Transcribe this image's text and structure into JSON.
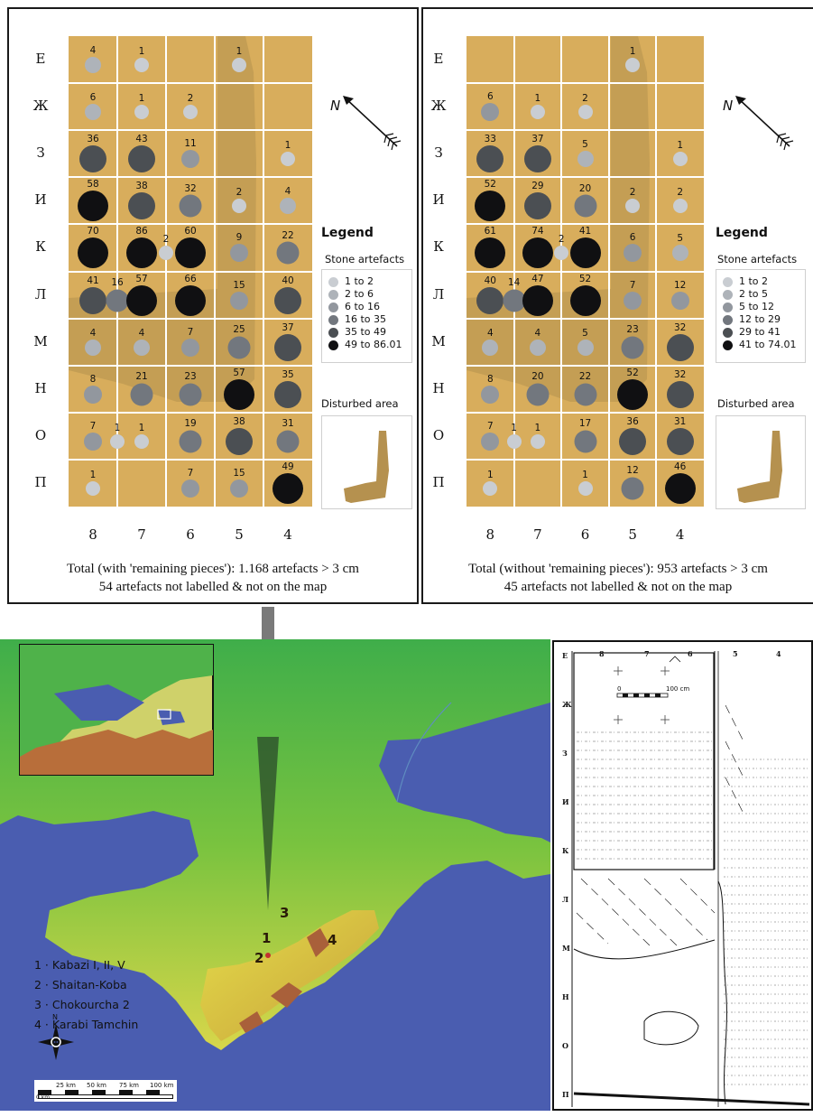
{
  "rows": [
    "Е",
    "Ж",
    "З",
    "И",
    "К",
    "Л",
    "М",
    "Н",
    "О",
    "П"
  ],
  "cols": [
    "8",
    "7",
    "6",
    "5",
    "4"
  ],
  "north_label": "N",
  "legend": {
    "title": "Legend",
    "subtitle": "Stone artefacts",
    "disturbed_label": "Disturbed area"
  },
  "colors": {
    "grid_fill": "#d8ad5c",
    "disturbed_fill": "#b5914f",
    "class_colors": [
      "#c9cdd2",
      "#aeb3b9",
      "#92979e",
      "#72777e",
      "#4b4f53",
      "#101012"
    ]
  },
  "left_map": {
    "legend_items": [
      "1 to 2",
      "2 to 6",
      "6 to 16",
      "16 to 35",
      "35 to 49",
      "49 to 86.01"
    ],
    "total_line1": "Total (with 'remaining pieces'): 1.168 artefacts > 3 cm",
    "total_line2": "54 artefacts not labelled & not on the map",
    "cells": [
      {
        "r": 0,
        "c": 0,
        "v": "4",
        "k": 1
      },
      {
        "r": 0,
        "c": 1,
        "v": "1",
        "k": 0
      },
      {
        "r": 0,
        "c": 3,
        "v": "1",
        "k": 0
      },
      {
        "r": 1,
        "c": 0,
        "v": "6",
        "k": 1
      },
      {
        "r": 1,
        "c": 1,
        "v": "1",
        "k": 0
      },
      {
        "r": 1,
        "c": 2,
        "v": "2",
        "k": 0
      },
      {
        "r": 2,
        "c": 0,
        "v": "36",
        "k": 4
      },
      {
        "r": 2,
        "c": 1,
        "v": "43",
        "k": 4
      },
      {
        "r": 2,
        "c": 2,
        "v": "11",
        "k": 2
      },
      {
        "r": 2,
        "c": 4,
        "v": "1",
        "k": 0
      },
      {
        "r": 3,
        "c": 0,
        "v": "58",
        "k": 5
      },
      {
        "r": 3,
        "c": 1,
        "v": "38",
        "k": 4
      },
      {
        "r": 3,
        "c": 2,
        "v": "32",
        "k": 3
      },
      {
        "r": 3,
        "c": 3,
        "v": "2",
        "k": 0
      },
      {
        "r": 3,
        "c": 4,
        "v": "4",
        "k": 1
      },
      {
        "r": 4,
        "c": 0,
        "v": "70",
        "k": 5
      },
      {
        "r": 4,
        "c": 1,
        "v": "86",
        "k": 5
      },
      {
        "r": 4,
        "c": 1.5,
        "v": "2",
        "k": 0
      },
      {
        "r": 4,
        "c": 2,
        "v": "60",
        "k": 5
      },
      {
        "r": 4,
        "c": 3,
        "v": "9",
        "k": 2
      },
      {
        "r": 4,
        "c": 4,
        "v": "22",
        "k": 3
      },
      {
        "r": 5,
        "c": 0,
        "v": "41",
        "k": 4
      },
      {
        "r": 5,
        "c": 0.5,
        "v": "16",
        "k": 3
      },
      {
        "r": 5,
        "c": 1,
        "v": "57",
        "k": 5
      },
      {
        "r": 5,
        "c": 2,
        "v": "66",
        "k": 5
      },
      {
        "r": 5,
        "c": 3,
        "v": "15",
        "k": 2
      },
      {
        "r": 5,
        "c": 4,
        "v": "40",
        "k": 4
      },
      {
        "r": 6,
        "c": 0,
        "v": "4",
        "k": 1
      },
      {
        "r": 6,
        "c": 1,
        "v": "4",
        "k": 1
      },
      {
        "r": 6,
        "c": 2,
        "v": "7",
        "k": 2
      },
      {
        "r": 6,
        "c": 3,
        "v": "25",
        "k": 3
      },
      {
        "r": 6,
        "c": 4,
        "v": "37",
        "k": 4
      },
      {
        "r": 7,
        "c": 0,
        "v": "8",
        "k": 2
      },
      {
        "r": 7,
        "c": 1,
        "v": "21",
        "k": 3
      },
      {
        "r": 7,
        "c": 2,
        "v": "23",
        "k": 3
      },
      {
        "r": 7,
        "c": 3,
        "v": "57",
        "k": 5
      },
      {
        "r": 7,
        "c": 4,
        "v": "35",
        "k": 4
      },
      {
        "r": 8,
        "c": 0,
        "v": "7",
        "k": 2
      },
      {
        "r": 8,
        "c": 0.5,
        "v": "1",
        "k": 0
      },
      {
        "r": 8,
        "c": 1,
        "v": "1",
        "k": 0
      },
      {
        "r": 8,
        "c": 2,
        "v": "19",
        "k": 3
      },
      {
        "r": 8,
        "c": 3,
        "v": "38",
        "k": 4
      },
      {
        "r": 8,
        "c": 4,
        "v": "31",
        "k": 3
      },
      {
        "r": 9,
        "c": 0,
        "v": "1",
        "k": 0
      },
      {
        "r": 9,
        "c": 2,
        "v": "7",
        "k": 2
      },
      {
        "r": 9,
        "c": 3,
        "v": "15",
        "k": 2
      },
      {
        "r": 9,
        "c": 4,
        "v": "49",
        "k": 5
      }
    ]
  },
  "right_map": {
    "legend_items": [
      "1 to 2",
      "2 to 5",
      "5 to 12",
      "12 to 29",
      "29 to 41",
      "41 to 74.01"
    ],
    "total_line1": "Total (without 'remaining pieces'): 953 artefacts > 3 cm",
    "total_line2": "45 artefacts not labelled & not on the map",
    "cells": [
      {
        "r": 0,
        "c": 3,
        "v": "1",
        "k": 0
      },
      {
        "r": 1,
        "c": 0,
        "v": "6",
        "k": 2
      },
      {
        "r": 1,
        "c": 1,
        "v": "1",
        "k": 0
      },
      {
        "r": 1,
        "c": 2,
        "v": "2",
        "k": 0
      },
      {
        "r": 2,
        "c": 0,
        "v": "33",
        "k": 4
      },
      {
        "r": 2,
        "c": 1,
        "v": "37",
        "k": 4
      },
      {
        "r": 2,
        "c": 2,
        "v": "5",
        "k": 1
      },
      {
        "r": 2,
        "c": 4,
        "v": "1",
        "k": 0
      },
      {
        "r": 3,
        "c": 0,
        "v": "52",
        "k": 5
      },
      {
        "r": 3,
        "c": 1,
        "v": "29",
        "k": 4
      },
      {
        "r": 3,
        "c": 2,
        "v": "20",
        "k": 3
      },
      {
        "r": 3,
        "c": 3,
        "v": "2",
        "k": 0
      },
      {
        "r": 3,
        "c": 4,
        "v": "2",
        "k": 0
      },
      {
        "r": 4,
        "c": 0,
        "v": "61",
        "k": 5
      },
      {
        "r": 4,
        "c": 1,
        "v": "74",
        "k": 5
      },
      {
        "r": 4,
        "c": 1.5,
        "v": "2",
        "k": 0
      },
      {
        "r": 4,
        "c": 2,
        "v": "41",
        "k": 5
      },
      {
        "r": 4,
        "c": 3,
        "v": "6",
        "k": 2
      },
      {
        "r": 4,
        "c": 4,
        "v": "5",
        "k": 1
      },
      {
        "r": 5,
        "c": 0,
        "v": "40",
        "k": 4
      },
      {
        "r": 5,
        "c": 0.5,
        "v": "14",
        "k": 3
      },
      {
        "r": 5,
        "c": 1,
        "v": "47",
        "k": 5
      },
      {
        "r": 5,
        "c": 2,
        "v": "52",
        "k": 5
      },
      {
        "r": 5,
        "c": 3,
        "v": "7",
        "k": 2
      },
      {
        "r": 5,
        "c": 4,
        "v": "12",
        "k": 2
      },
      {
        "r": 6,
        "c": 0,
        "v": "4",
        "k": 1
      },
      {
        "r": 6,
        "c": 1,
        "v": "4",
        "k": 1
      },
      {
        "r": 6,
        "c": 2,
        "v": "5",
        "k": 1
      },
      {
        "r": 6,
        "c": 3,
        "v": "23",
        "k": 3
      },
      {
        "r": 6,
        "c": 4,
        "v": "32",
        "k": 4
      },
      {
        "r": 7,
        "c": 0,
        "v": "8",
        "k": 2
      },
      {
        "r": 7,
        "c": 1,
        "v": "20",
        "k": 3
      },
      {
        "r": 7,
        "c": 2,
        "v": "22",
        "k": 3
      },
      {
        "r": 7,
        "c": 3,
        "v": "52",
        "k": 5
      },
      {
        "r": 7,
        "c": 4,
        "v": "32",
        "k": 4
      },
      {
        "r": 8,
        "c": 0,
        "v": "7",
        "k": 2
      },
      {
        "r": 8,
        "c": 0.5,
        "v": "1",
        "k": 0
      },
      {
        "r": 8,
        "c": 1,
        "v": "1",
        "k": 0
      },
      {
        "r": 8,
        "c": 2,
        "v": "17",
        "k": 3
      },
      {
        "r": 8,
        "c": 3,
        "v": "36",
        "k": 4
      },
      {
        "r": 8,
        "c": 4,
        "v": "31",
        "k": 4
      },
      {
        "r": 9,
        "c": 0,
        "v": "1",
        "k": 0
      },
      {
        "r": 9,
        "c": 2,
        "v": "1",
        "k": 0
      },
      {
        "r": 9,
        "c": 3,
        "v": "12",
        "k": 3
      },
      {
        "r": 9,
        "c": 4,
        "v": "46",
        "k": 5
      }
    ]
  },
  "crimea": {
    "places": [
      "1 · Kabazi I, II, V",
      "2 · Shaitan-Koba",
      "3 · Chokourcha 2",
      "4 · Karabi Tamchin"
    ],
    "site_numbers": [
      "1",
      "2",
      "3",
      "4"
    ],
    "compass_n": "N",
    "scale_labels": [
      "0 km",
      "25 km",
      "50 km",
      "75 km",
      "100 km"
    ],
    "sea_color": "#4a5db0",
    "land_color": "#3fae4a"
  },
  "plan": {
    "col_labels": [
      "8",
      "7",
      "6",
      "5",
      "4"
    ],
    "row_labels": [
      "Е",
      "Ж",
      "З",
      "И",
      "К",
      "Л",
      "М",
      "Н",
      "О",
      "П"
    ],
    "scale_left": "0",
    "scale_right": "100 cm"
  }
}
